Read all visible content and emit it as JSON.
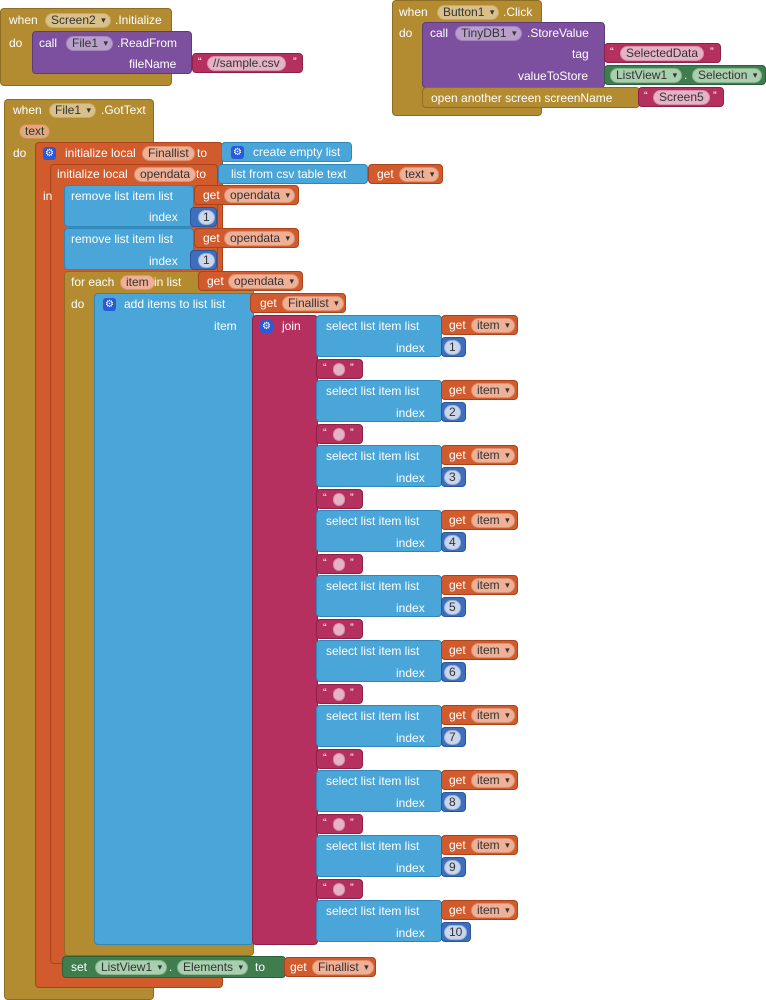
{
  "screen_init": {
    "when": "when",
    "component": "Screen2",
    "event": ".Initialize",
    "do": "do",
    "call": "call",
    "file": "File1",
    "method": ".ReadFrom",
    "param": "fileName",
    "value": "//sample.csv"
  },
  "button_click": {
    "when": "when",
    "component": "Button1",
    "event": ".Click",
    "do": "do",
    "call": "call",
    "db": "TinyDB1",
    "method": ".StoreValue",
    "tag_label": "tag",
    "tag_value": "SelectedData",
    "store_label": "valueToStore",
    "listview": "ListView1",
    "property": "Selection",
    "open_label": "open another screen  screenName",
    "screen_value": "Screen5"
  },
  "gottext": {
    "when": "when",
    "component": "File1",
    "event": ".GotText",
    "param": "text",
    "do": "do",
    "init_finallist": "initialize local",
    "finallist_name": "Finallist",
    "to": "to",
    "create_empty": "create empty list",
    "init_opendata": "initialize local",
    "opendata_name": "opendata",
    "csv_table": "list from csv table  text",
    "get": "get",
    "text_var": "text",
    "in": "in",
    "remove_item": "remove list item  list",
    "opendata_var": "opendata",
    "index_label": "index",
    "one": "1",
    "for_each": "for each",
    "item_name": "item",
    "in_list": "in list",
    "add_items": "add items to list   list",
    "finallist_var": "Finallist",
    "item_label": "item",
    "join": "join",
    "select_item": "select list item  list",
    "item_var": "item",
    "indices": [
      "1",
      "2",
      "3",
      "4",
      "5",
      "6",
      "7",
      "8",
      "9",
      "10"
    ],
    "set": "set",
    "listview": "ListView1",
    "elements": "Elements",
    "set_to": "to"
  }
}
